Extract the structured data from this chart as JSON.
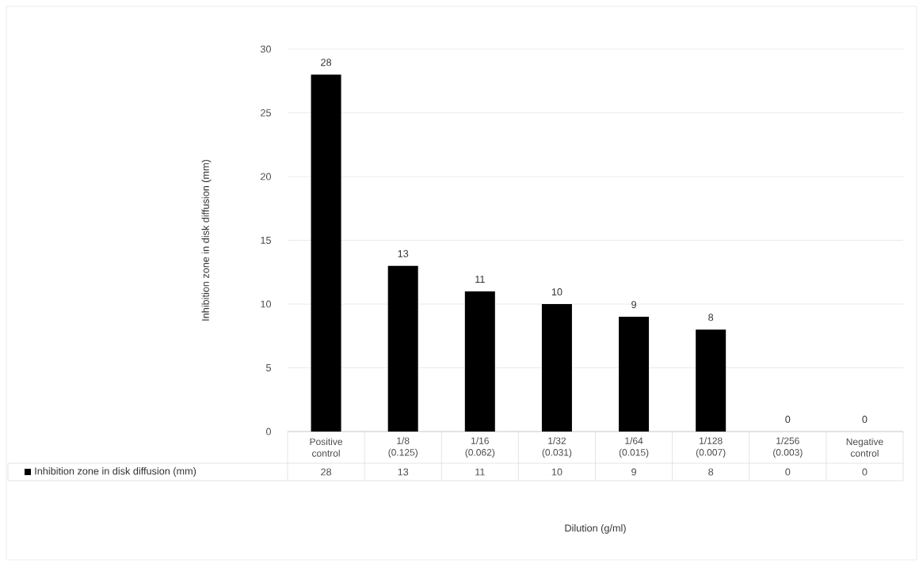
{
  "chart_data": {
    "type": "bar",
    "annotations": [
      "Dilution (g/ml)"
    ],
    "ylabel": "Inhibition zone in disk diffusion (mm)",
    "categories": [
      "Positive control",
      "1/8 (0.125)",
      "1/16 (0.062)",
      "1/32 (0.031)",
      "1/64 (0.015)",
      "1/128 (0.007)",
      "1/256 (0.003)",
      "Negative control"
    ],
    "series": [
      {
        "name": "Inhibition zone in disk diffusion (mm)",
        "color": "#000000",
        "values": [
          28,
          13,
          11,
          10,
          9,
          8,
          0,
          0
        ],
        "value_labels": [
          "28",
          "13",
          "11",
          "10",
          "9",
          "8",
          "0",
          "0"
        ]
      }
    ],
    "ylim": [
      0,
      30
    ],
    "yticks": [
      0,
      5,
      10,
      15,
      20,
      25,
      30
    ],
    "grid": "y",
    "data_labels": true
  }
}
